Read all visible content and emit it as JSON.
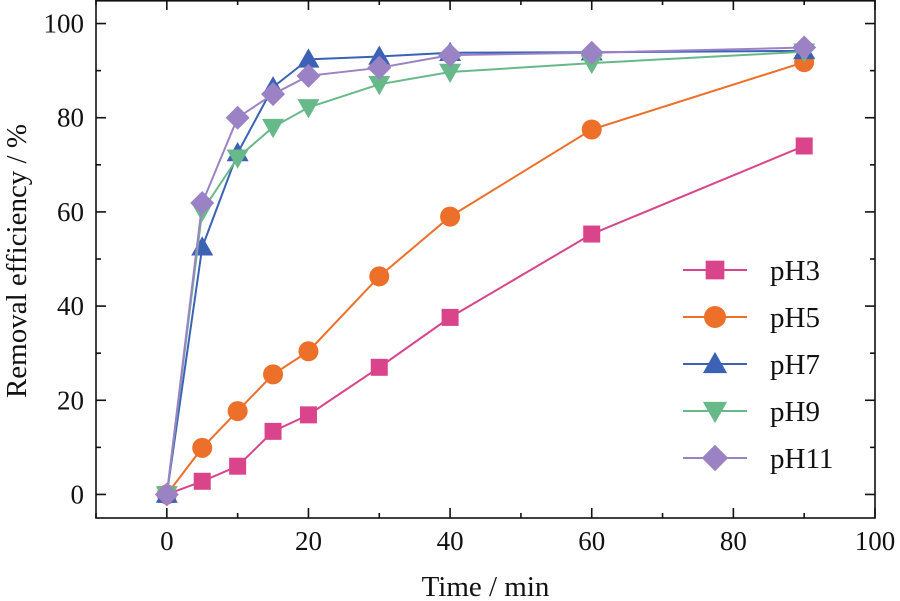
{
  "chart_data": {
    "type": "line",
    "xlabel": "Time / min",
    "ylabel": "Removal efficiency / %",
    "xlim": [
      -10,
      100
    ],
    "ylim": [
      -5,
      105
    ],
    "xticks": [
      0,
      20,
      40,
      60,
      80,
      100
    ],
    "yticks": [
      0,
      20,
      40,
      60,
      80,
      100
    ],
    "xtick_labels": [
      "0",
      "20",
      "40",
      "60",
      "80",
      "100"
    ],
    "ytick_labels": [
      "0",
      "20",
      "40",
      "60",
      "80",
      "100"
    ],
    "x": [
      0,
      5,
      10,
      15,
      20,
      30,
      40,
      60,
      90
    ],
    "grid": false,
    "legend_position": "bottom-right",
    "series": [
      {
        "name": "pH3",
        "marker": "square",
        "color": "#d9448a",
        "values": [
          0,
          2.8,
          6,
          13.4,
          16.9,
          27,
          37.6,
          55.3,
          74
        ]
      },
      {
        "name": "pH5",
        "marker": "circle",
        "color": "#ec6f2a",
        "values": [
          0,
          9.9,
          17.7,
          25.5,
          30.4,
          46.3,
          59,
          77.5,
          91.8
        ]
      },
      {
        "name": "pH7",
        "marker": "triangle-up",
        "color": "#3b62b5",
        "values": [
          0,
          52.5,
          72.5,
          86.5,
          92.4,
          93,
          93.8,
          93.9,
          94.2
        ]
      },
      {
        "name": "pH9",
        "marker": "triangle-down",
        "color": "#68b98a",
        "values": [
          0,
          60.2,
          71.5,
          78,
          82.2,
          87.1,
          89.7,
          91.6,
          94
        ]
      },
      {
        "name": "pH11",
        "marker": "diamond",
        "color": "#9b82c5",
        "values": [
          0,
          61.9,
          80,
          85,
          88.9,
          90.6,
          93.3,
          93.8,
          94.9
        ]
      }
    ]
  }
}
